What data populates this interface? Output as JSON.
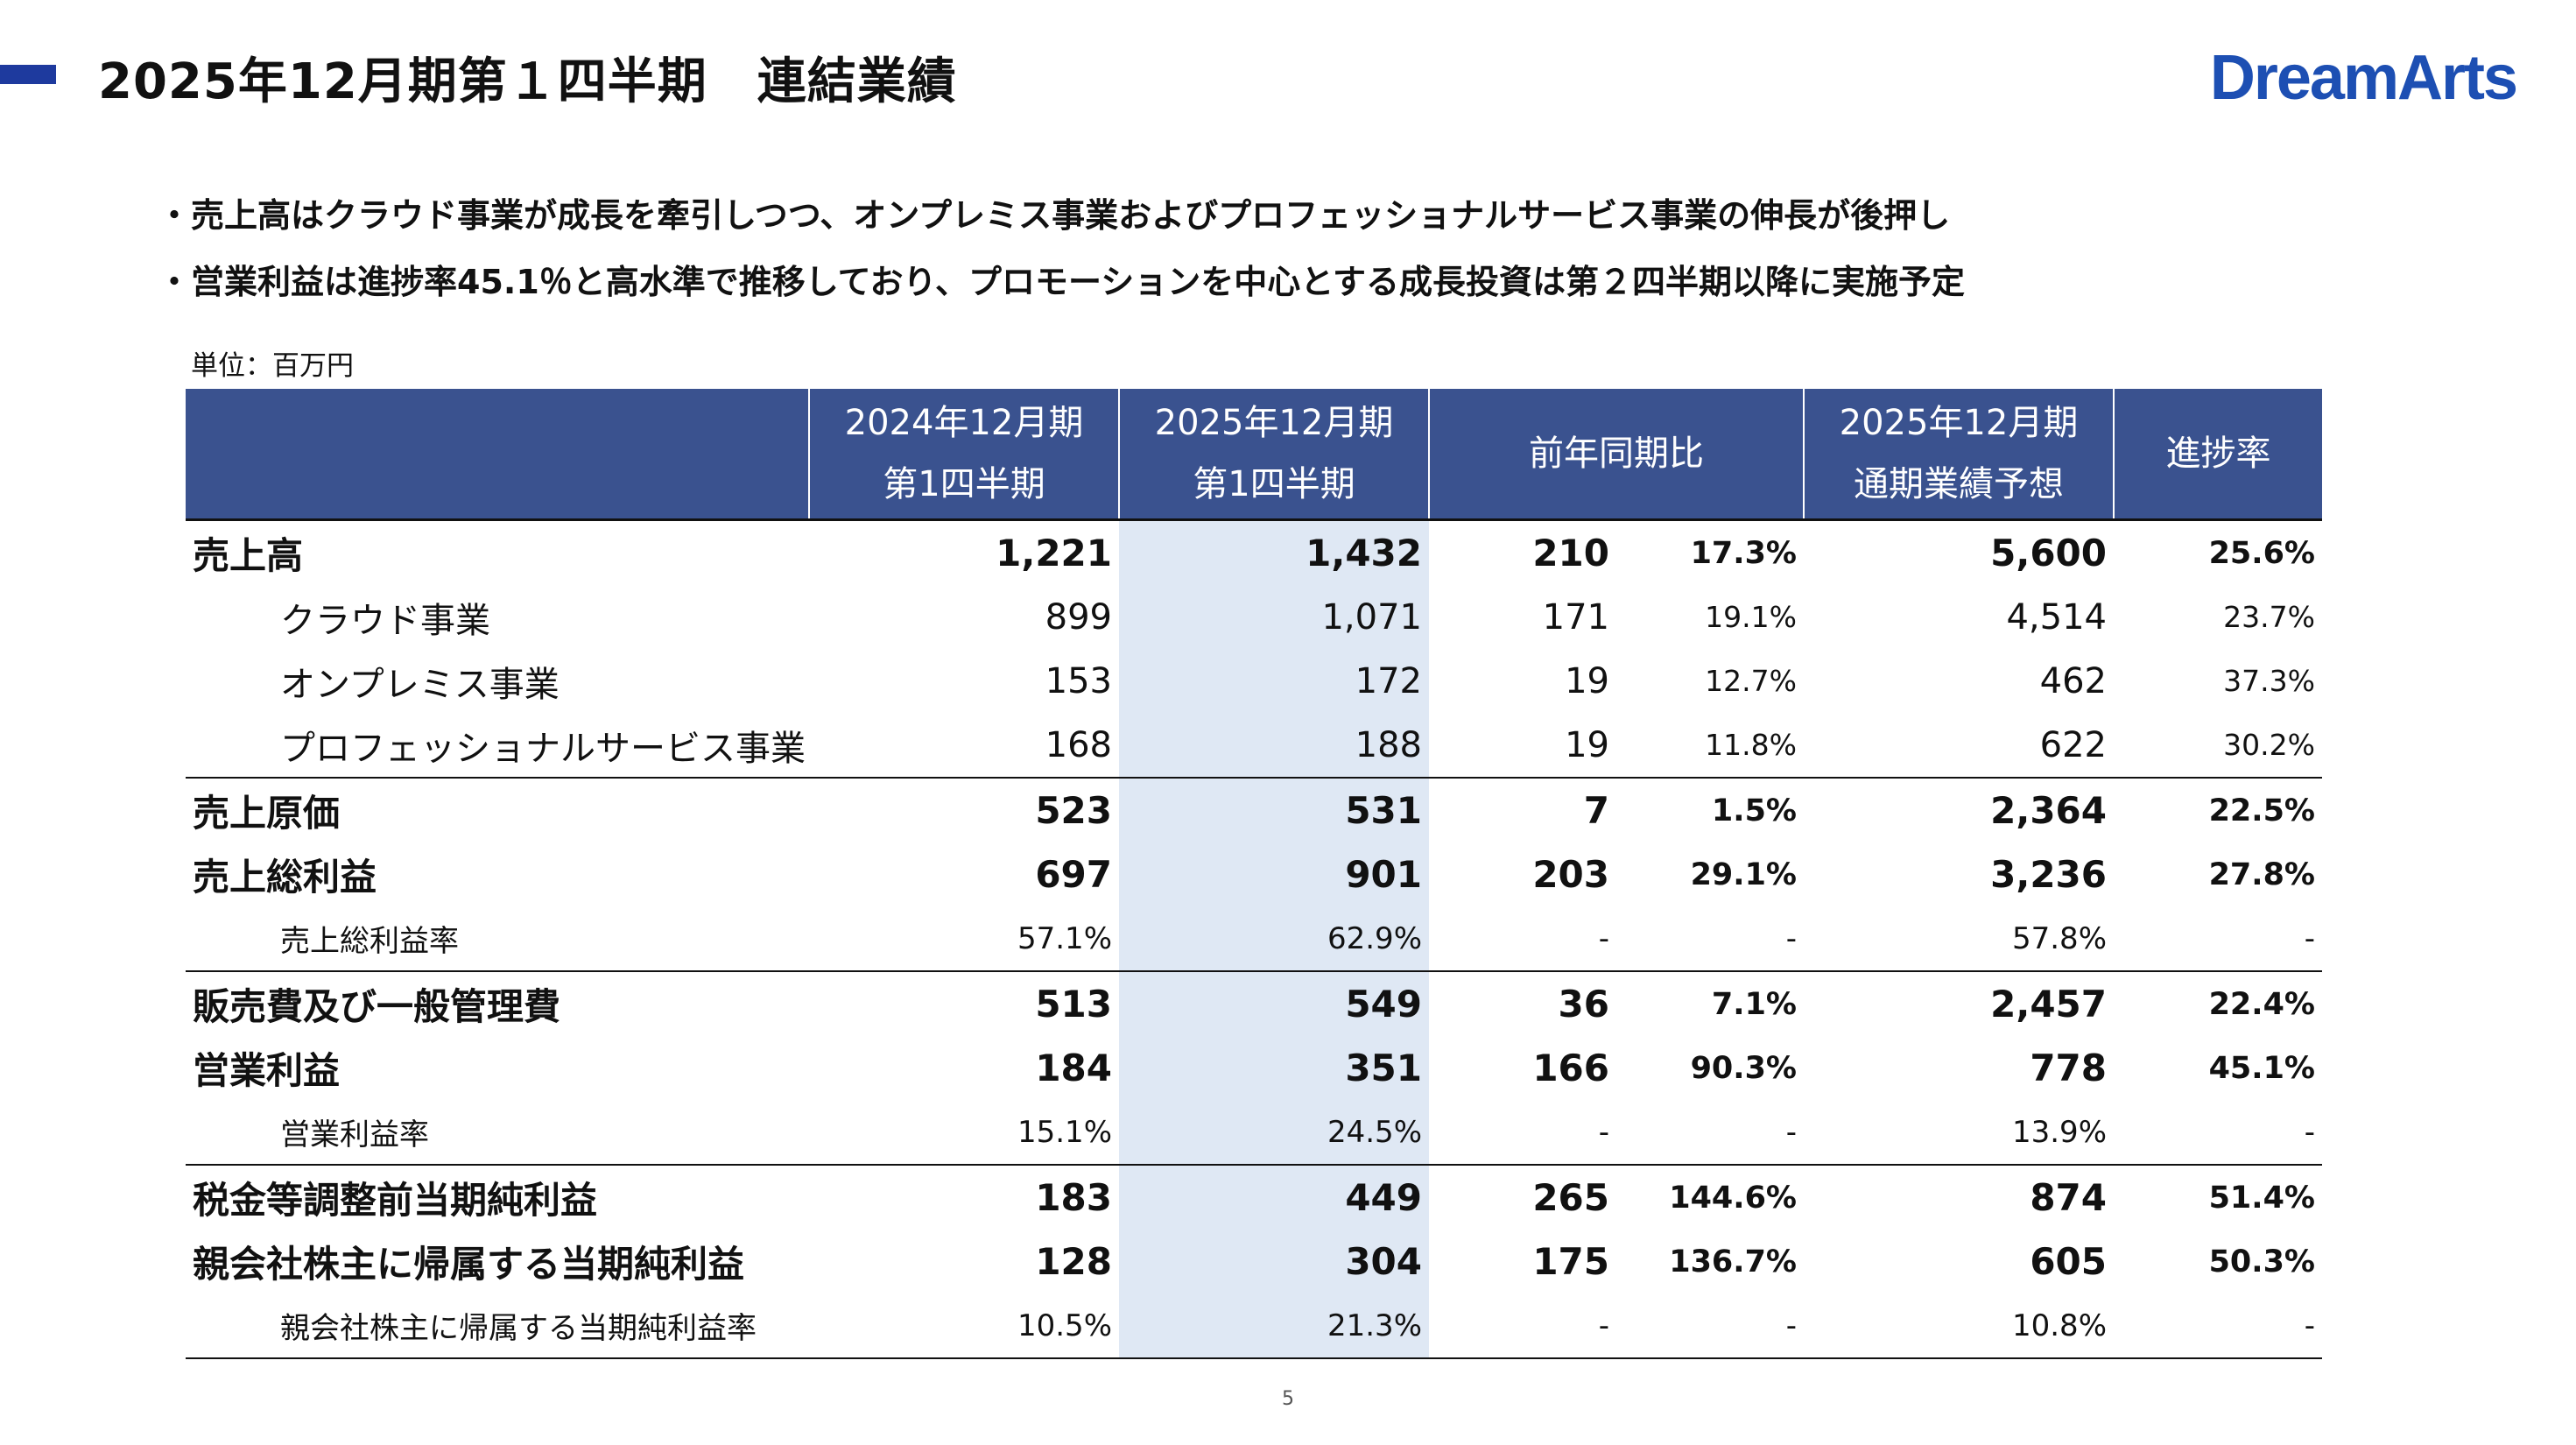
{
  "header": {
    "title": "2025年12月期第１四半期　連結業績",
    "logo_text": "DreamArts"
  },
  "bullets": [
    "・売上高はクラウド事業が成長を牽引しつつ、オンプレミス事業およびプロフェッショナルサービス事業の伸長が後押し",
    "・営業利益は進捗率45.1％と高水準で推移しており、プロモーションを中心とする成長投資は第２四半期以降に実施予定"
  ],
  "unit_label": "単位：百万円",
  "table": {
    "headers": {
      "col1_line1": "2024年12月期",
      "col1_line2": "第1四半期",
      "col2_line1": "2025年12月期",
      "col2_line2": "第1四半期",
      "col3": "前年同期比",
      "col4_line1": "2025年12月期",
      "col4_line2": "通期業績予想",
      "col5": "進捗率"
    },
    "rows": [
      {
        "label": "売上高",
        "prev": "1,221",
        "curr": "1,432",
        "diff": "210",
        "yoy": "17.3%",
        "forecast": "5,600",
        "progress": "25.6%"
      },
      {
        "label": "クラウド事業",
        "prev": "899",
        "curr": "1,071",
        "diff": "171",
        "yoy": "19.1%",
        "forecast": "4,514",
        "progress": "23.7%"
      },
      {
        "label": "オンプレミス事業",
        "prev": "153",
        "curr": "172",
        "diff": "19",
        "yoy": "12.7%",
        "forecast": "462",
        "progress": "37.3%"
      },
      {
        "label": "プロフェッショナルサービス事業",
        "prev": "168",
        "curr": "188",
        "diff": "19",
        "yoy": "11.8%",
        "forecast": "622",
        "progress": "30.2%"
      },
      {
        "label": "売上原価",
        "prev": "523",
        "curr": "531",
        "diff": "7",
        "yoy": "1.5%",
        "forecast": "2,364",
        "progress": "22.5%"
      },
      {
        "label": "売上総利益",
        "prev": "697",
        "curr": "901",
        "diff": "203",
        "yoy": "29.1%",
        "forecast": "3,236",
        "progress": "27.8%"
      },
      {
        "label": "売上総利益率",
        "prev": "57.1%",
        "curr": "62.9%",
        "diff": "-",
        "yoy": "-",
        "forecast": "57.8%",
        "progress": "-"
      },
      {
        "label": "販売費及び一般管理費",
        "prev": "513",
        "curr": "549",
        "diff": "36",
        "yoy": "7.1%",
        "forecast": "2,457",
        "progress": "22.4%"
      },
      {
        "label": "営業利益",
        "prev": "184",
        "curr": "351",
        "diff": "166",
        "yoy": "90.3%",
        "forecast": "778",
        "progress": "45.1%"
      },
      {
        "label": "営業利益率",
        "prev": "15.1%",
        "curr": "24.5%",
        "diff": "-",
        "yoy": "-",
        "forecast": "13.9%",
        "progress": "-"
      },
      {
        "label": "税金等調整前当期純利益",
        "prev": "183",
        "curr": "449",
        "diff": "265",
        "yoy": "144.6%",
        "forecast": "874",
        "progress": "51.4%"
      },
      {
        "label": "親会社株主に帰属する当期純利益",
        "prev": "128",
        "curr": "304",
        "diff": "175",
        "yoy": "136.7%",
        "forecast": "605",
        "progress": "50.3%"
      },
      {
        "label": "親会社株主に帰属する当期純利益率",
        "prev": "10.5%",
        "curr": "21.3%",
        "diff": "-",
        "yoy": "-",
        "forecast": "10.8%",
        "progress": "-"
      }
    ]
  },
  "page_number": "5",
  "colors": {
    "header_bg": "#3a528f",
    "highlight_col": "#dfe8f4",
    "logo": "#1d4fb3",
    "accent_bar": "#1e3a9e"
  }
}
